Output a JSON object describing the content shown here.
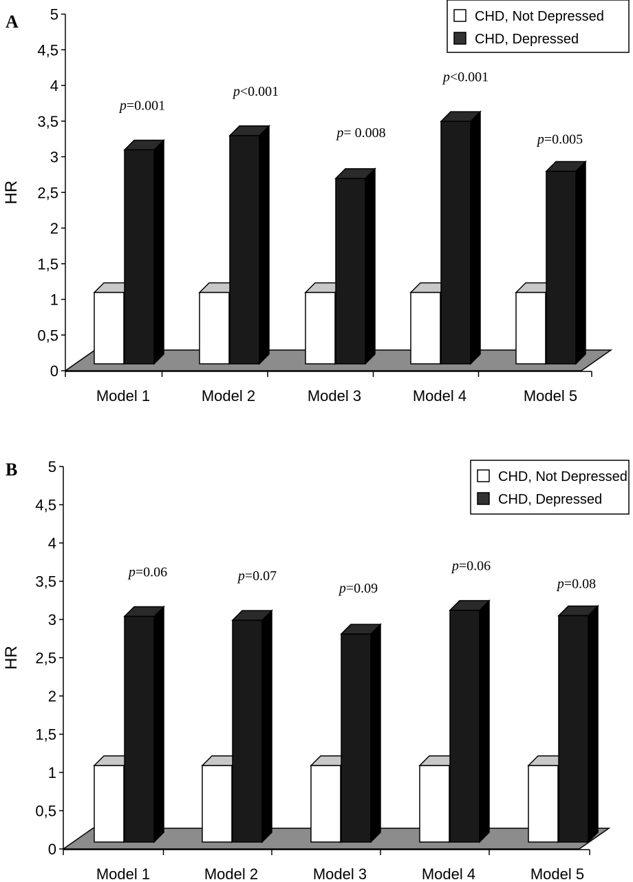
{
  "chart_data": [
    {
      "panel_label": "A",
      "type": "bar",
      "bar_style": "3d",
      "categories": [
        "Model 1",
        "Model 2",
        "Model 3",
        "Model 4",
        "Model 5"
      ],
      "series": [
        {
          "name": "CHD, Not Depressed",
          "values": [
            1,
            1,
            1,
            1,
            1
          ],
          "color": "#ffffff"
        },
        {
          "name": "CHD, Depressed",
          "values": [
            3.0,
            3.2,
            2.6,
            3.4,
            2.7
          ],
          "color": "#1f1f1f"
        }
      ],
      "annotations": [
        "p=0.001",
        "p<0.001",
        "p= 0.008",
        "p<0.001",
        "p=0.005"
      ],
      "ylabel": "HR",
      "ylim": [
        0,
        5
      ],
      "yticks": [
        "0",
        "0,5",
        "1",
        "1,5",
        "2",
        "2,5",
        "3",
        "3,5",
        "4",
        "4,5",
        "5"
      ],
      "grid": false,
      "legend_position": "top-right"
    },
    {
      "panel_label": "B",
      "type": "bar",
      "bar_style": "3d",
      "categories": [
        "Model 1",
        "Model 2",
        "Model 3",
        "Model 4",
        "Model 5"
      ],
      "series": [
        {
          "name": "CHD, Not Depressed",
          "values": [
            1,
            1,
            1,
            1,
            1
          ],
          "color": "#ffffff"
        },
        {
          "name": "CHD, Depressed",
          "values": [
            2.95,
            2.9,
            2.72,
            3.03,
            2.96
          ],
          "color": "#1f1f1f"
        }
      ],
      "annotations": [
        "p=0.06",
        "p=0.07",
        "p=0.09",
        "p=0.06",
        "p=0.08"
      ],
      "ylabel": "HR",
      "ylim": [
        0,
        5
      ],
      "yticks": [
        "0",
        "0,5",
        "1",
        "1,5",
        "2",
        "2,5",
        "3",
        "3,5",
        "4",
        "4,5",
        "5"
      ],
      "grid": false,
      "legend_position": "top-right"
    }
  ],
  "colors": {
    "floor": "#8c8c8c",
    "bar_top_light": "#c8c8c8",
    "bar_top_dark": "#2a2a2a",
    "bar_side_dark": "#000000",
    "legend_dark_swatch": "#333333"
  }
}
